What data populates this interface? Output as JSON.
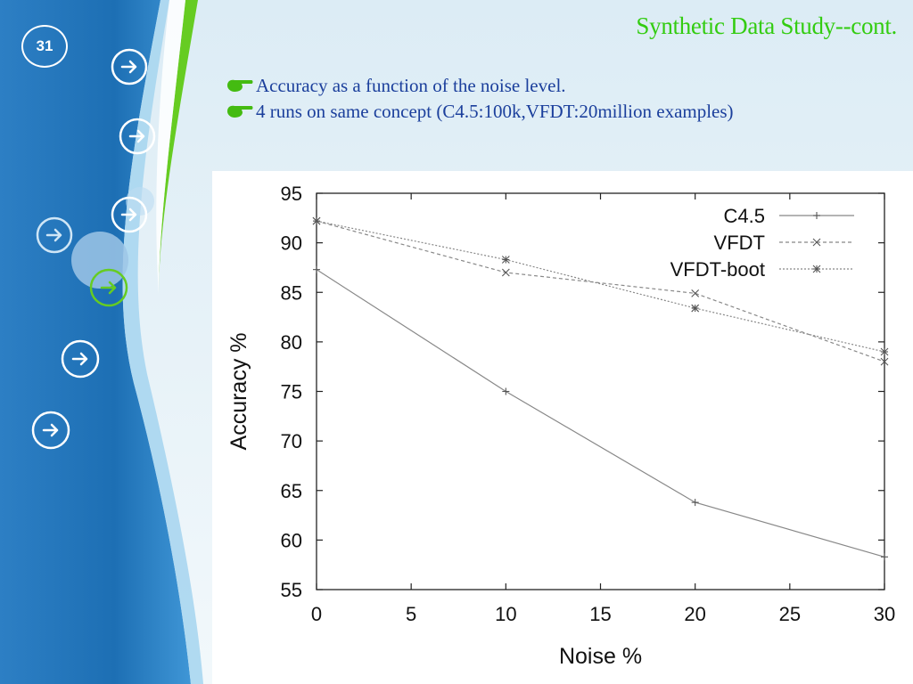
{
  "slide": {
    "title": "Synthetic Data Study--cont.",
    "page_number": "31",
    "bullets": [
      "Accuracy as a function of the noise level.",
      "4 runs on same concept (C4.5:100k,VFDT:20million examples)"
    ],
    "colors": {
      "title": "#33cc11",
      "bullet_text": "#1b3f9c",
      "sidebar": "#1d6fb4",
      "accent_swoosh": "#66cc22"
    },
    "icons": [
      "pointing-hand-icon",
      "arrow-right-circle-icon"
    ]
  },
  "chart_data": {
    "type": "line",
    "xlabel": "Noise %",
    "ylabel": "Accuracy %",
    "x": [
      0,
      10,
      20,
      30
    ],
    "xticks": [
      0,
      5,
      10,
      15,
      20,
      25,
      30
    ],
    "yticks": [
      55,
      60,
      65,
      70,
      75,
      80,
      85,
      90,
      95
    ],
    "xlim": [
      0,
      30
    ],
    "ylim": [
      55,
      95
    ],
    "grid": false,
    "legend_position": "top-right",
    "series": [
      {
        "name": "C4.5",
        "values": [
          87.3,
          75.0,
          63.8,
          58.3
        ],
        "marker": "+",
        "line": "solid"
      },
      {
        "name": "VFDT",
        "values": [
          92.2,
          87.0,
          84.9,
          78.0
        ],
        "marker": "x",
        "line": "dashed"
      },
      {
        "name": "VFDT-boot",
        "values": [
          92.2,
          88.3,
          83.4,
          79.0
        ],
        "marker": "*",
        "line": "dotted"
      }
    ]
  }
}
